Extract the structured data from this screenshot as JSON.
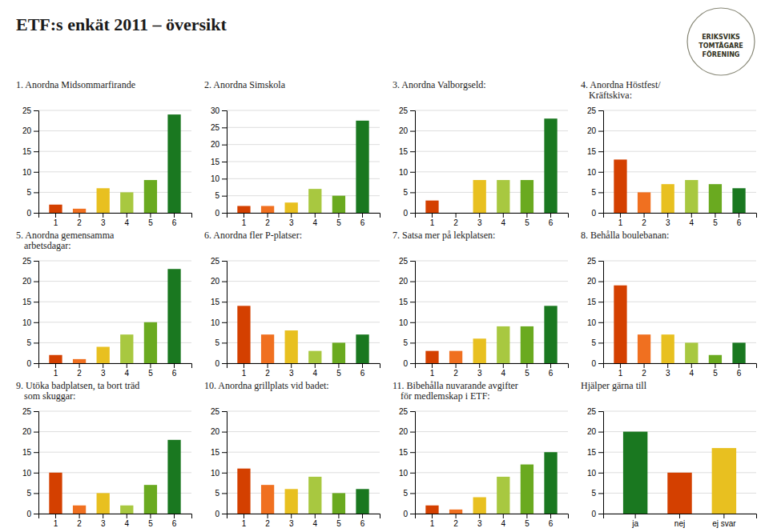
{
  "title": "ETF:s enkät 2011 – översikt",
  "annotations": [
    "ERIKSVIKS\nTOMTÄGARE\nFÖRENING"
  ],
  "chart_data": [
    {
      "type": "bar",
      "title": "1. Anordna Midsommarfirande",
      "categories": [
        "1",
        "2",
        "3",
        "4",
        "5",
        "6"
      ],
      "values": [
        2,
        1,
        6,
        5,
        8,
        24
      ],
      "colors": [
        "#d44000",
        "#f07020",
        "#e8c020",
        "#a8c840",
        "#6aaa20",
        "#1a7820"
      ],
      "ylim": [
        0,
        25
      ],
      "yticks": [
        0,
        5,
        10,
        15,
        20,
        25
      ],
      "grid": true
    },
    {
      "type": "bar",
      "title": "2. Anordna Simskola",
      "categories": [
        "1",
        "2",
        "3",
        "4",
        "5",
        "6"
      ],
      "values": [
        2,
        2,
        3,
        7,
        5,
        27
      ],
      "colors": [
        "#d44000",
        "#f07020",
        "#e8c020",
        "#a8c840",
        "#6aaa20",
        "#1a7820"
      ],
      "ylim": [
        0,
        30
      ],
      "yticks": [
        0,
        5,
        10,
        15,
        20,
        25,
        30
      ],
      "grid": true
    },
    {
      "type": "bar",
      "title": "3. Anordna Valborgseld:",
      "categories": [
        "1",
        "2",
        "3",
        "4",
        "5",
        "6"
      ],
      "values": [
        3,
        0,
        8,
        8,
        8,
        23
      ],
      "colors": [
        "#d44000",
        "#f07020",
        "#e8c020",
        "#a8c840",
        "#6aaa20",
        "#1a7820"
      ],
      "ylim": [
        0,
        25
      ],
      "yticks": [
        0,
        5,
        10,
        15,
        20,
        25
      ],
      "grid": true
    },
    {
      "type": "bar",
      "title": "4. Anordna Höstfest/\nKräftskiva:",
      "categories": [
        "1",
        "2",
        "3",
        "4",
        "5",
        "6"
      ],
      "values": [
        13,
        5,
        7,
        8,
        7,
        6
      ],
      "colors": [
        "#d44000",
        "#f07020",
        "#e8c020",
        "#a8c840",
        "#6aaa20",
        "#1a7820"
      ],
      "ylim": [
        0,
        25
      ],
      "yticks": [
        0,
        5,
        10,
        15,
        20,
        25
      ],
      "grid": true
    },
    {
      "type": "bar",
      "title": "5. Anordna gemensamma\narbetsdagar:",
      "categories": [
        "1",
        "2",
        "3",
        "4",
        "5",
        "6"
      ],
      "values": [
        2,
        1,
        4,
        7,
        10,
        23
      ],
      "colors": [
        "#d44000",
        "#f07020",
        "#e8c020",
        "#a8c840",
        "#6aaa20",
        "#1a7820"
      ],
      "ylim": [
        0,
        25
      ],
      "yticks": [
        0,
        5,
        10,
        15,
        20,
        25
      ],
      "grid": true
    },
    {
      "type": "bar",
      "title": "6. Anordna fler P-platser:",
      "categories": [
        "1",
        "2",
        "3",
        "4",
        "5",
        "6"
      ],
      "values": [
        14,
        7,
        8,
        3,
        5,
        7
      ],
      "colors": [
        "#d44000",
        "#f07020",
        "#e8c020",
        "#a8c840",
        "#6aaa20",
        "#1a7820"
      ],
      "ylim": [
        0,
        25
      ],
      "yticks": [
        0,
        5,
        10,
        15,
        20,
        25
      ],
      "grid": true
    },
    {
      "type": "bar",
      "title": "7. Satsa mer på lekplatsen:",
      "categories": [
        "1",
        "2",
        "3",
        "4",
        "5",
        "6"
      ],
      "values": [
        3,
        3,
        6,
        9,
        9,
        14
      ],
      "colors": [
        "#d44000",
        "#f07020",
        "#e8c020",
        "#a8c840",
        "#6aaa20",
        "#1a7820"
      ],
      "ylim": [
        0,
        25
      ],
      "yticks": [
        0,
        5,
        10,
        15,
        20,
        25
      ],
      "grid": true
    },
    {
      "type": "bar",
      "title": "8. Behålla boulebanan:",
      "categories": [
        "1",
        "2",
        "3",
        "4",
        "5",
        "6"
      ],
      "values": [
        19,
        7,
        7,
        5,
        2,
        5
      ],
      "colors": [
        "#d44000",
        "#f07020",
        "#e8c020",
        "#a8c840",
        "#6aaa20",
        "#1a7820"
      ],
      "ylim": [
        0,
        25
      ],
      "yticks": [
        0,
        5,
        10,
        15,
        20,
        25
      ],
      "grid": true
    },
    {
      "type": "bar",
      "title": "9. Utöka badplatsen, ta bort träd\nsom skuggar:",
      "categories": [
        "1",
        "2",
        "3",
        "4",
        "5",
        "6"
      ],
      "values": [
        10,
        2,
        5,
        2,
        7,
        18
      ],
      "colors": [
        "#d44000",
        "#f07020",
        "#e8c020",
        "#a8c840",
        "#6aaa20",
        "#1a7820"
      ],
      "ylim": [
        0,
        25
      ],
      "yticks": [
        0,
        5,
        10,
        15,
        20,
        25
      ],
      "grid": true
    },
    {
      "type": "bar",
      "title": "10. Anordna grillplats vid badet:",
      "categories": [
        "1",
        "2",
        "3",
        "4",
        "5",
        "6"
      ],
      "values": [
        11,
        7,
        6,
        9,
        5,
        6
      ],
      "colors": [
        "#d44000",
        "#f07020",
        "#e8c020",
        "#a8c840",
        "#6aaa20",
        "#1a7820"
      ],
      "ylim": [
        0,
        25
      ],
      "yticks": [
        0,
        5,
        10,
        15,
        20,
        25
      ],
      "grid": true
    },
    {
      "type": "bar",
      "title": "11. Bibehålla nuvarande avgifter\nför medlemskap i ETF:",
      "categories": [
        "1",
        "2",
        "3",
        "4",
        "5",
        "6"
      ],
      "values": [
        2,
        1,
        4,
        9,
        12,
        15
      ],
      "colors": [
        "#d44000",
        "#f07020",
        "#e8c020",
        "#a8c840",
        "#6aaa20",
        "#1a7820"
      ],
      "ylim": [
        0,
        25
      ],
      "yticks": [
        0,
        5,
        10,
        15,
        20,
        25
      ],
      "grid": true
    },
    {
      "type": "bar",
      "title": "Hjälper gärna till",
      "categories": [
        "ja",
        "nej",
        "ej svar"
      ],
      "values": [
        20,
        10,
        16
      ],
      "colors": [
        "#1a7820",
        "#d44000",
        "#e8c020"
      ],
      "ylim": [
        0,
        25
      ],
      "yticks": [
        0,
        5,
        10,
        15,
        20,
        25
      ],
      "grid": true
    }
  ]
}
